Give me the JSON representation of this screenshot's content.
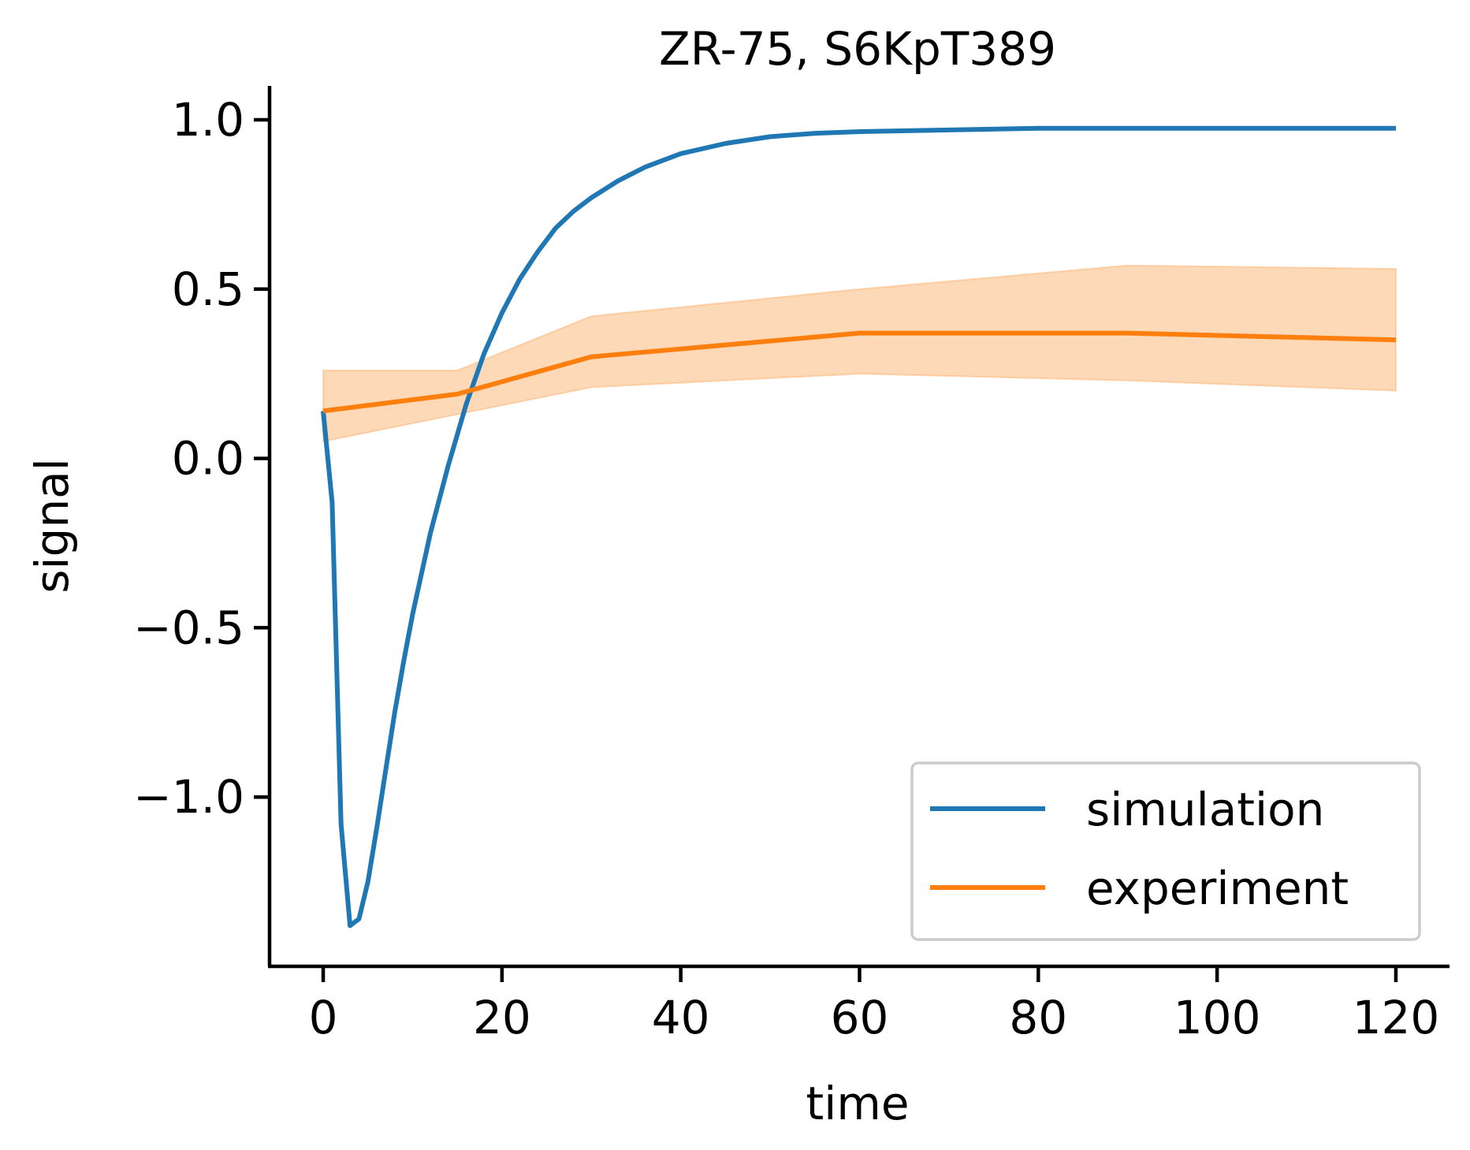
{
  "chart_data": {
    "type": "line",
    "title": "ZR-75, S6KpT389",
    "xlabel": "time",
    "ylabel": "signal",
    "xlim": [
      -6,
      126
    ],
    "ylim": [
      -1.5,
      1.1
    ],
    "xticks": [
      0,
      20,
      40,
      60,
      80,
      100,
      120
    ],
    "yticks": [
      -1.0,
      -0.5,
      0.0,
      0.5,
      1.0
    ],
    "xtick_labels": [
      "0",
      "20",
      "40",
      "60",
      "80",
      "100",
      "120"
    ],
    "ytick_labels": [
      "−1.0",
      "−0.5",
      "0.0",
      "0.5",
      "1.0"
    ],
    "grid": false,
    "legend_position": "lower right",
    "series": [
      {
        "name": "simulation",
        "color": "#1f77b4",
        "x": [
          0,
          1,
          2,
          3,
          4,
          5,
          6,
          7,
          8,
          9,
          10,
          12,
          14,
          16,
          18,
          20,
          22,
          24,
          26,
          28,
          30,
          33,
          36,
          40,
          45,
          50,
          55,
          60,
          70,
          80,
          90,
          100,
          110,
          120
        ],
        "y": [
          0.14,
          -0.13,
          -1.08,
          -1.38,
          -1.36,
          -1.25,
          -1.09,
          -0.92,
          -0.75,
          -0.6,
          -0.46,
          -0.22,
          -0.02,
          0.16,
          0.31,
          0.43,
          0.53,
          0.61,
          0.68,
          0.73,
          0.77,
          0.82,
          0.86,
          0.9,
          0.93,
          0.95,
          0.96,
          0.965,
          0.97,
          0.975,
          0.975,
          0.975,
          0.975,
          0.975
        ]
      },
      {
        "name": "experiment",
        "color": "#ff7f0e",
        "x": [
          0,
          15,
          30,
          60,
          90,
          120
        ],
        "y": [
          0.14,
          0.19,
          0.3,
          0.37,
          0.37,
          0.35
        ],
        "lower": [
          0.05,
          0.13,
          0.21,
          0.25,
          0.23,
          0.2
        ],
        "upper": [
          0.26,
          0.26,
          0.42,
          0.5,
          0.57,
          0.56
        ],
        "band_color": "#fdd9b8"
      }
    ]
  }
}
